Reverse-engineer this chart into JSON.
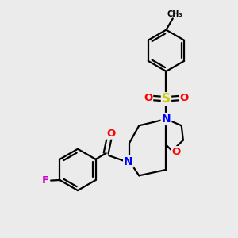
{
  "background_color": "#ebebeb",
  "atom_colors": {
    "C": "#000000",
    "N": "#0000ff",
    "O": "#ff0000",
    "F": "#cc00cc",
    "S": "#cccc00"
  },
  "bond_color": "#000000",
  "bond_width": 1.6,
  "figsize": [
    3.0,
    3.0
  ],
  "dpi": 100
}
